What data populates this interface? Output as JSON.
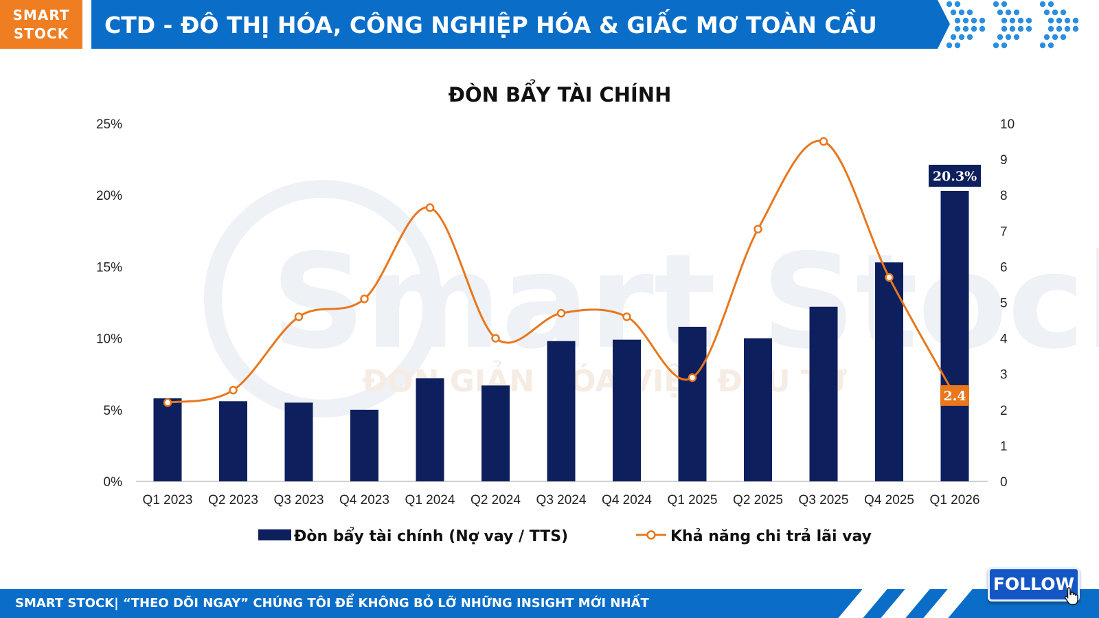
{
  "header": {
    "logo": "SMART\nSTOCK",
    "logo_line1": "SMART",
    "logo_line2": "STOCK",
    "title": "CTD - ĐÔ THỊ HÓA, CÔNG NGHIỆP HÓA & GIẤC MƠ TOÀN CẦU"
  },
  "footer": {
    "text": "SMART STOCK| “THEO DÕI NGAY” CHÚNG TÔI ĐỂ KHÔNG BỎ LỠ NHỮNG INSIGHT MỚI NHẤT",
    "follow_label": "FOLLOW"
  },
  "watermark": {
    "brand": "Smart Stock",
    "slogan": "ĐƠN GIẢN HÓA VIỆC ĐẦU TƯ"
  },
  "colors": {
    "bar": "#0d1f5c",
    "line": "#e8771e",
    "header_blue": "#0a6ec8",
    "logo_orange": "#ef7d22"
  },
  "chart_data": {
    "type": "bar",
    "title": "ĐÒN BẨY TÀI CHÍNH",
    "categories": [
      "Q1 2023",
      "Q2 2023",
      "Q3 2023",
      "Q4 2023",
      "Q1 2024",
      "Q2 2024",
      "Q3 2024",
      "Q4 2024",
      "Q1 2025",
      "Q2 2025",
      "Q3 2025",
      "Q4 2025",
      "Q1 2026"
    ],
    "series": [
      {
        "name": "Đòn bẩy tài chính (Nợ vay / TTS)",
        "type": "bar",
        "axis": "left",
        "values": [
          5.8,
          5.6,
          5.5,
          5.0,
          7.2,
          6.7,
          9.8,
          9.9,
          10.8,
          10.0,
          12.2,
          15.3,
          20.3
        ]
      },
      {
        "name": "Khả năng chi trả lãi vay",
        "type": "line",
        "axis": "right",
        "values": [
          2.2,
          2.55,
          4.6,
          5.1,
          7.65,
          4.0,
          4.7,
          4.6,
          2.9,
          7.05,
          9.5,
          5.7,
          2.4
        ]
      }
    ],
    "y_left": {
      "ticks": [
        "0%",
        "5%",
        "10%",
        "15%",
        "20%",
        "25%"
      ],
      "range": [
        0,
        25
      ]
    },
    "y_right": {
      "ticks": [
        "0",
        "1",
        "2",
        "3",
        "4",
        "5",
        "6",
        "7",
        "8",
        "9",
        "10"
      ],
      "range": [
        0,
        10
      ]
    },
    "data_labels": [
      {
        "series": 0,
        "index": 12,
        "text": "20.3%"
      },
      {
        "series": 1,
        "index": 12,
        "text": "2.4"
      }
    ],
    "legend": "bottom",
    "grid": false
  }
}
